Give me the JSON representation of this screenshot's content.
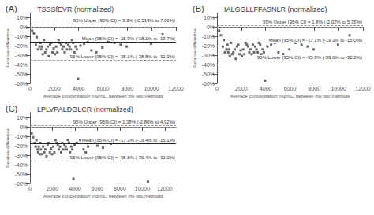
{
  "chart_data": [
    {
      "type": "scatter",
      "panel_label": "(A)",
      "title": "TSSSfEVR (normalized)",
      "xlabel": "Average concentration [ng/mL] between the two methods",
      "ylabel": "Relative difference",
      "marker": "square",
      "color": "#444444",
      "grid": false,
      "xlim": [
        0,
        12000
      ],
      "ylim": [
        -60,
        15
      ],
      "xticks": [
        0,
        2000,
        4000,
        6000,
        8000,
        10000,
        12000
      ],
      "yticks": [
        {
          "value": -60,
          "label": "-60%"
        },
        {
          "value": -50,
          "label": "-50%"
        },
        {
          "value": -40,
          "label": "-40%"
        },
        {
          "value": -30,
          "label": "-30%"
        },
        {
          "value": -20,
          "label": "-20%"
        },
        {
          "value": -10,
          "label": "-10%"
        },
        {
          "value": 0,
          "label": "0%"
        },
        {
          "value": 10,
          "label": "10%"
        }
      ],
      "x": [
        180,
        320,
        480,
        560,
        650,
        780,
        860,
        920,
        980,
        1050,
        1150,
        1250,
        1350,
        1450,
        1550,
        1650,
        1750,
        1850,
        1950,
        2050,
        2150,
        2250,
        2350,
        2450,
        2550,
        2650,
        2750,
        2850,
        2950,
        3050,
        3150,
        3250,
        3350,
        3450,
        3550,
        3650,
        3750,
        3850,
        3950,
        4150,
        4450,
        4750,
        5050,
        5450,
        5950,
        6450,
        6950,
        7450,
        7950,
        8950,
        9950,
        10900
      ],
      "values": [
        -4,
        -7,
        -19,
        -11,
        -24,
        -21,
        -17,
        -24,
        -21,
        -29,
        -14,
        -27,
        -24,
        -21,
        -31,
        -19,
        -17,
        -27,
        -23,
        -29,
        -21,
        -27,
        -14,
        -17,
        -19,
        -24,
        -21,
        -27,
        -17,
        -24,
        -19,
        -21,
        -24,
        -14,
        -17,
        -27,
        -21,
        -24,
        -55,
        -20,
        -18,
        -15,
        -25,
        -27,
        -22,
        -15,
        -17,
        -19,
        -21,
        -12,
        -18,
        -8
      ],
      "hlines": [
        {
          "y": 0,
          "color": "#aaaaaa",
          "line_style": "dashed"
        },
        {
          "y": 3.3,
          "color": "#777777",
          "line_style": "dashed",
          "label": "95% Upper (95% CI) = 3.3% (-0.519% to 7.00%)"
        },
        {
          "y": -15.9,
          "color": "#222222",
          "line_style": "solid",
          "label": "Mean (95% CI) = -15.9% (-18.1% to -13.7%)"
        },
        {
          "y": -35.1,
          "color": "#777777",
          "line_style": "dashed",
          "label": "95% Lower (95% CI) = -35.1% (-38.8% to -31.3%)"
        }
      ]
    },
    {
      "type": "scatter",
      "panel_label": "(B)",
      "title": "IALGGLLFFASNLR (normalized)",
      "xlabel": "Average concentration [ng/mL] between the two methods",
      "ylabel": "Relative difference",
      "marker": "square",
      "color": "#444444",
      "grid": false,
      "xlim": [
        0,
        12000
      ],
      "ylim": [
        -60,
        15
      ],
      "xticks": [
        0,
        2000,
        4000,
        6000,
        8000,
        10000,
        12000
      ],
      "yticks": [
        {
          "value": -60,
          "label": "-60%"
        },
        {
          "value": -50,
          "label": "-50%"
        },
        {
          "value": -40,
          "label": "-40%"
        },
        {
          "value": -30,
          "label": "-30%"
        },
        {
          "value": -20,
          "label": "-20%"
        },
        {
          "value": -10,
          "label": "-10%"
        },
        {
          "value": 0,
          "label": "0%"
        },
        {
          "value": 10,
          "label": "10%"
        }
      ],
      "x": [
        180,
        320,
        480,
        560,
        650,
        780,
        860,
        920,
        980,
        1050,
        1150,
        1250,
        1350,
        1450,
        1550,
        1650,
        1750,
        1850,
        1950,
        2050,
        2150,
        2250,
        2350,
        2450,
        2550,
        2650,
        2750,
        2850,
        2950,
        3050,
        3150,
        3250,
        3350,
        3450,
        3550,
        3650,
        3750,
        3850,
        3950,
        4150,
        4450,
        4750,
        5050,
        5450,
        5950,
        6450,
        6950,
        7450,
        7950,
        8950,
        9950,
        10900
      ],
      "values": [
        -4,
        -9,
        -21,
        -14,
        -27,
        -24,
        -19,
        -27,
        -24,
        -31,
        -17,
        -29,
        -27,
        -24,
        -34,
        -21,
        -19,
        -29,
        -25,
        -31,
        -24,
        -29,
        -17,
        -19,
        -21,
        -27,
        -24,
        -29,
        -19,
        -27,
        -21,
        -24,
        -27,
        -17,
        -19,
        -29,
        -24,
        -27,
        -57,
        -21,
        -19,
        -17,
        -27,
        -29,
        -24,
        -17,
        -19,
        -21,
        -24,
        -14,
        -19,
        -9
      ],
      "hlines": [
        {
          "y": 0,
          "color": "#aaaaaa",
          "line_style": "dashed"
        },
        {
          "y": 1.8,
          "color": "#777777",
          "line_style": "dashed",
          "label": "95% Upper (95% CI) = 1.8% (-2.02% to 5.35%)"
        },
        {
          "y": -17.1,
          "color": "#222222",
          "line_style": "solid",
          "label": "Mean (95% CI) = -17.1% (-19.3% to -15.0%)"
        },
        {
          "y": -35.9,
          "color": "#777777",
          "line_style": "dashed",
          "label": "95% Lower (95% CI) = -35.9% (-39.6% to -32.2%)"
        }
      ]
    },
    {
      "type": "scatter",
      "panel_label": "(C)",
      "title": "LPLVPALDGLCR (normalized)",
      "xlabel": "Average concentration [ng/mL] between the two methods",
      "ylabel": "Relative difference",
      "marker": "square",
      "color": "#444444",
      "grid": false,
      "xlim": [
        0,
        13000
      ],
      "ylim": [
        -60,
        15
      ],
      "xticks": [
        0,
        2000,
        4000,
        6000,
        8000,
        10000,
        12000
      ],
      "yticks": [
        {
          "value": -60,
          "label": "-60%"
        },
        {
          "value": -50,
          "label": "-50%"
        },
        {
          "value": -40,
          "label": "-40%"
        },
        {
          "value": -30,
          "label": "-30%"
        },
        {
          "value": -20,
          "label": "-20%"
        },
        {
          "value": -10,
          "label": "-10%"
        },
        {
          "value": 0,
          "label": "0%"
        },
        {
          "value": 10,
          "label": "10%"
        }
      ],
      "x": [
        150,
        280,
        420,
        500,
        580,
        680,
        730,
        780,
        870,
        920,
        970,
        1070,
        1170,
        1270,
        1370,
        1470,
        1570,
        1670,
        1770,
        1870,
        1970,
        2070,
        2170,
        2270,
        2370,
        2470,
        2570,
        2670,
        2770,
        2870,
        2970,
        3070,
        3170,
        3270,
        3370,
        3470,
        3570,
        3670,
        3770,
        3870,
        3970,
        4170,
        4470,
        4770,
        4970,
        5170,
        5470,
        5770,
        6000,
        6500,
        7200,
        10500
      ],
      "values": [
        -7,
        -11,
        -17,
        -21,
        -14,
        -24,
        -27,
        -21,
        -29,
        -17,
        -24,
        -29,
        -21,
        -27,
        -24,
        -31,
        -19,
        -17,
        -27,
        -23,
        -29,
        -21,
        -27,
        -14,
        -17,
        -19,
        -24,
        -21,
        -27,
        -17,
        -24,
        -19,
        -21,
        -24,
        -14,
        -17,
        -27,
        -21,
        -24,
        -55,
        -19,
        -17,
        -14,
        -24,
        -27,
        -21,
        -14,
        -17,
        -20,
        -22,
        -18,
        -58
      ],
      "hlines": [
        {
          "y": 0,
          "color": "#aaaaaa",
          "line_style": "dashed"
        },
        {
          "y": 1.38,
          "color": "#777777",
          "line_style": "dashed",
          "label": "95% Upper (95% CI) = 1.38% (-2.86% to 4.92%)"
        },
        {
          "y": -17.3,
          "color": "#222222",
          "line_style": "solid",
          "label": "Mean (95% CI) = -17.3% (-19.4% to -15.1%)"
        },
        {
          "y": -35.8,
          "color": "#777777",
          "line_style": "dashed",
          "label": "95% Lower (95% CI) = -35.8% (-39.4% to -32.2%)"
        }
      ]
    }
  ]
}
